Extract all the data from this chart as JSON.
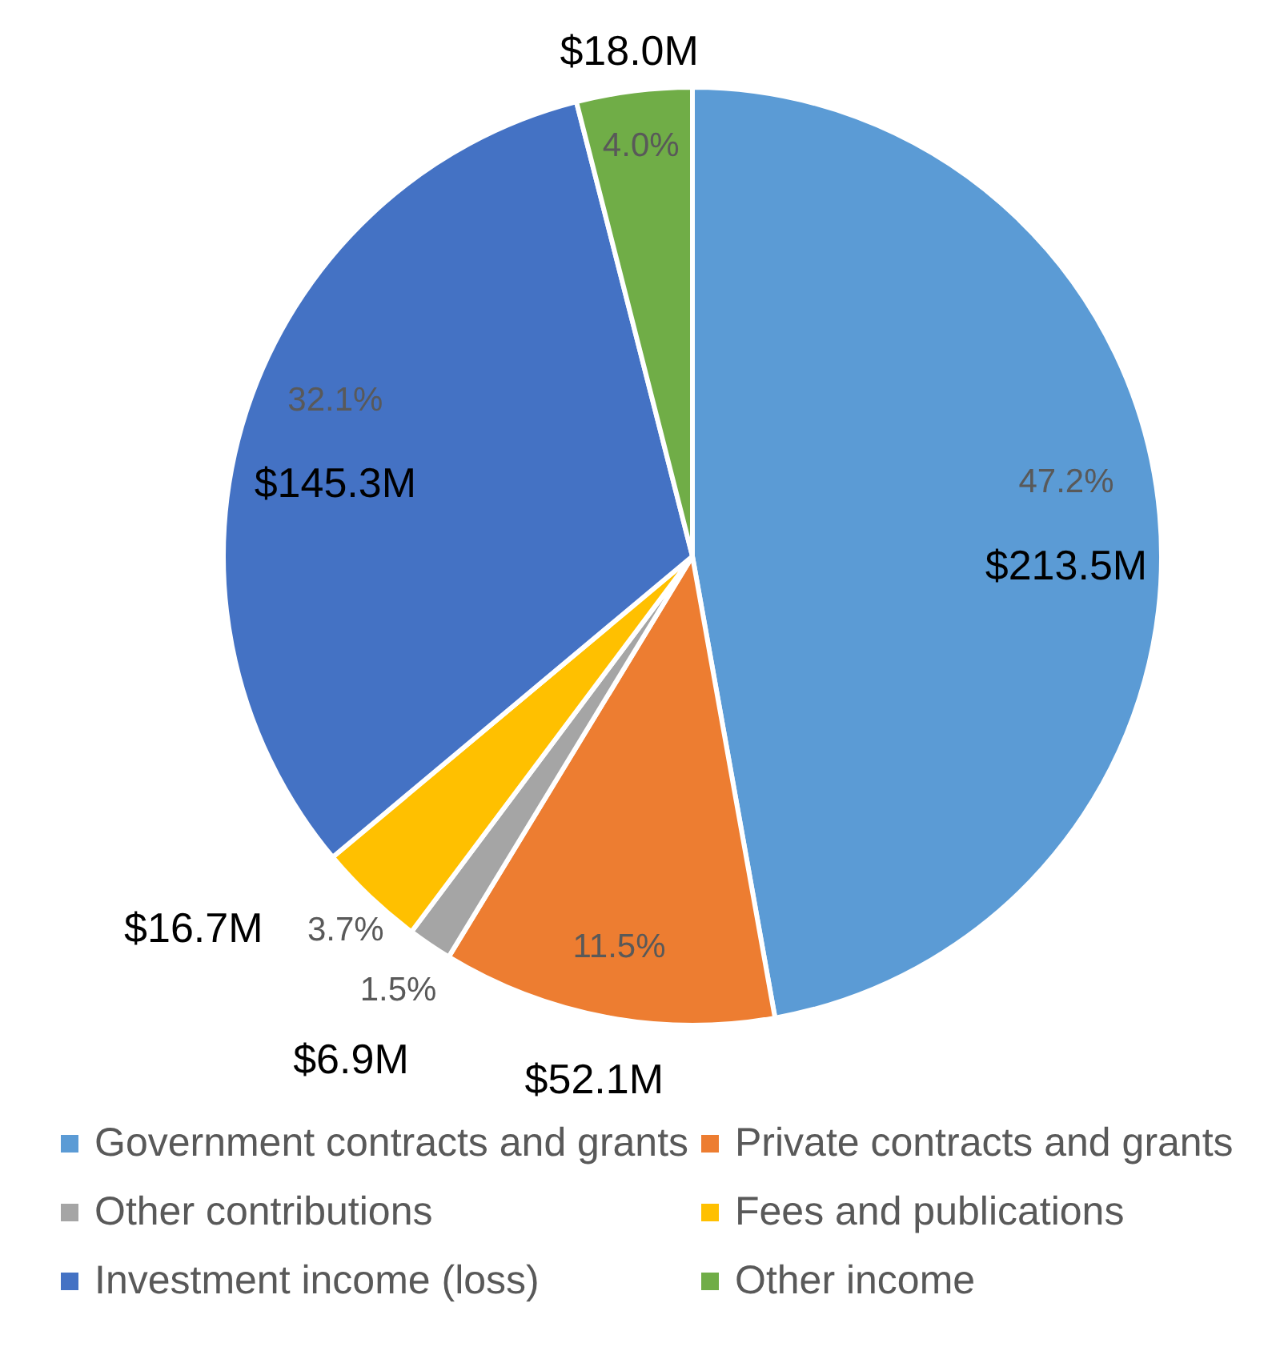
{
  "chart_data": {
    "type": "pie",
    "categories": [
      "Government contracts and grants",
      "Private contracts and grants",
      "Other contributions",
      "Fees and publications",
      "Investment income (loss)",
      "Other income"
    ],
    "values": [
      213.5,
      52.1,
      6.9,
      16.7,
      145.3,
      18.0
    ],
    "colors": [
      "#5b9bd5",
      "#ed7d31",
      "#a5a5a5",
      "#ffc000",
      "#4472c4",
      "#70ad47"
    ],
    "value_labels": [
      "$213.5M",
      "$52.1M",
      "$6.9M",
      "$16.7M",
      "$145.3M",
      "$18.0M"
    ],
    "annotations": [
      "47.2%",
      "11.5%",
      "1.5%",
      "3.7%",
      "32.1%",
      "4.0%"
    ],
    "legend": "bottom"
  }
}
